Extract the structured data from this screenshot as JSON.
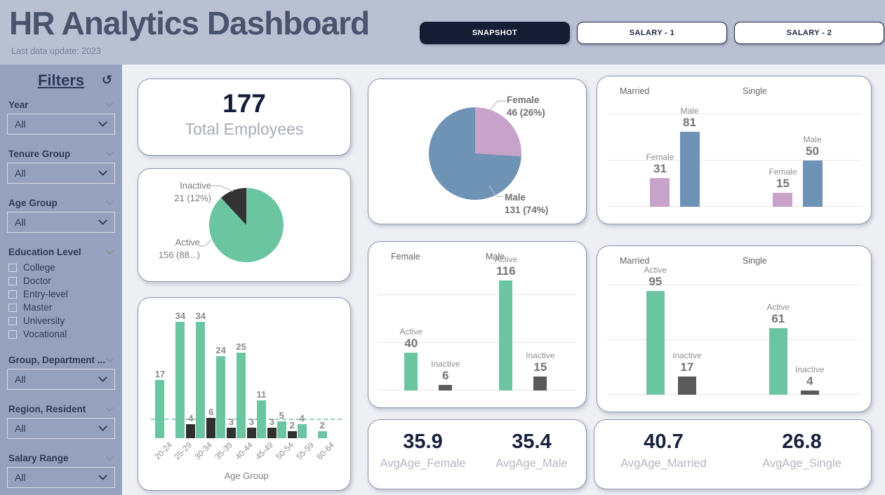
{
  "colors": {
    "header_bg": "#b9c0d1",
    "sidebar_bg": "#96a1be",
    "canvas_bg": "#edeff3",
    "active_tab_bg": "#141d33",
    "navy": "#18213d",
    "green": "#6cc5a1",
    "blue": "#6e93b5",
    "mauve": "#c7a3c9",
    "dark_gray": "#303030",
    "mid_gray": "#5a5a5a"
  },
  "header": {
    "title": "HR Analytics Dashboard",
    "subtitle": "Last data update: 2023",
    "tabs": [
      {
        "label": "SNAPSHOT",
        "active": true
      },
      {
        "label": "SALARY - 1",
        "active": false
      },
      {
        "label": "SALARY - 2",
        "active": false
      }
    ]
  },
  "sidebar": {
    "title": "Filters",
    "reset_icon": "↺",
    "filters": [
      {
        "label": "Year",
        "type": "dropdown",
        "value": "All"
      },
      {
        "label": "Tenure Group",
        "type": "dropdown",
        "value": "All"
      },
      {
        "label": "Age Group",
        "type": "dropdown",
        "value": "All"
      },
      {
        "label": "Education Level",
        "type": "checkboxes",
        "options": [
          "College",
          "Doctor",
          "Entry-level",
          "Master",
          "University",
          "Vocational"
        ]
      },
      {
        "label": "Group, Department ...",
        "type": "dropdown",
        "value": "All"
      },
      {
        "label": "Region, Resident",
        "type": "dropdown",
        "value": "All"
      },
      {
        "label": "Salary Range",
        "type": "dropdown",
        "value": "All"
      }
    ]
  },
  "kpis": {
    "total": {
      "value": "177",
      "label": "Total Employees"
    },
    "avg_gender": [
      {
        "value": "35.9",
        "label": "AvgAge_Female"
      },
      {
        "value": "35.4",
        "label": "AvgAge_Male"
      }
    ],
    "avg_marital": [
      {
        "value": "40.7",
        "label": "AvgAge_Married"
      },
      {
        "value": "26.8",
        "label": "AvgAge_Single"
      }
    ]
  },
  "chart_data": [
    {
      "id": "status_pie",
      "type": "pie",
      "slices": [
        {
          "label": "Active",
          "value": 156,
          "display": "156 (88...)",
          "color": "#6cc5a1"
        },
        {
          "label": "Inactive",
          "value": 21,
          "display": "21 (12%)",
          "color": "#333333"
        }
      ]
    },
    {
      "id": "gender_pie",
      "type": "pie",
      "slices": [
        {
          "label": "Female",
          "value": 46,
          "display": "46 (26%)",
          "color": "#c7a3c9"
        },
        {
          "label": "Male",
          "value": 131,
          "display": "131 (74%)",
          "color": "#6e93b5"
        }
      ]
    },
    {
      "id": "age_group_bars",
      "type": "bar",
      "xlabel": "Age Group",
      "categories": [
        "20-24",
        "25-29",
        "30-34",
        "35-39",
        "40-44",
        "45-49",
        "50-54",
        "55-59",
        "60-64"
      ],
      "series": [
        {
          "name": "Active",
          "color": "#6cc5a1",
          "values": [
            17,
            34,
            34,
            24,
            25,
            11,
            5,
            4,
            2
          ]
        },
        {
          "name": "Inactive",
          "color": "#303030",
          "values": [
            null,
            4,
            6,
            3,
            3,
            3,
            2,
            null,
            null
          ]
        }
      ],
      "ylim": [
        0,
        38
      ],
      "ref_line": {
        "value": 5.3,
        "color": "#8fd0b8",
        "style": "dashed"
      }
    },
    {
      "id": "marital_gender_bars",
      "type": "grouped-bar",
      "groups": [
        "Married",
        "Single"
      ],
      "series": [
        {
          "name": "Female",
          "color": "#c7a3c9"
        },
        {
          "name": "Male",
          "color": "#6e93b5"
        }
      ],
      "values": [
        [
          31,
          81
        ],
        [
          15,
          50
        ]
      ],
      "ylim": [
        0,
        130
      ],
      "gridlines": [
        0,
        50,
        100
      ]
    },
    {
      "id": "gender_status_bars",
      "type": "grouped-bar",
      "groups": [
        "Female",
        "Male"
      ],
      "series": [
        {
          "name": "Active",
          "color": "#6cc5a1"
        },
        {
          "name": "Inactive",
          "color": "#5a5a5a"
        }
      ],
      "values": [
        [
          40,
          6
        ],
        [
          116,
          15
        ]
      ],
      "ylim": [
        0,
        146
      ],
      "gridlines": [
        0,
        50,
        100
      ]
    },
    {
      "id": "marital_status_bars",
      "type": "grouped-bar",
      "groups": [
        "Married",
        "Single"
      ],
      "series": [
        {
          "name": "Active",
          "color": "#6cc5a1"
        },
        {
          "name": "Inactive",
          "color": "#5a5a5a"
        }
      ],
      "values": [
        [
          95,
          17
        ],
        [
          61,
          4
        ]
      ],
      "ylim": [
        0,
        127
      ],
      "gridlines": [
        0,
        50,
        100
      ]
    }
  ]
}
